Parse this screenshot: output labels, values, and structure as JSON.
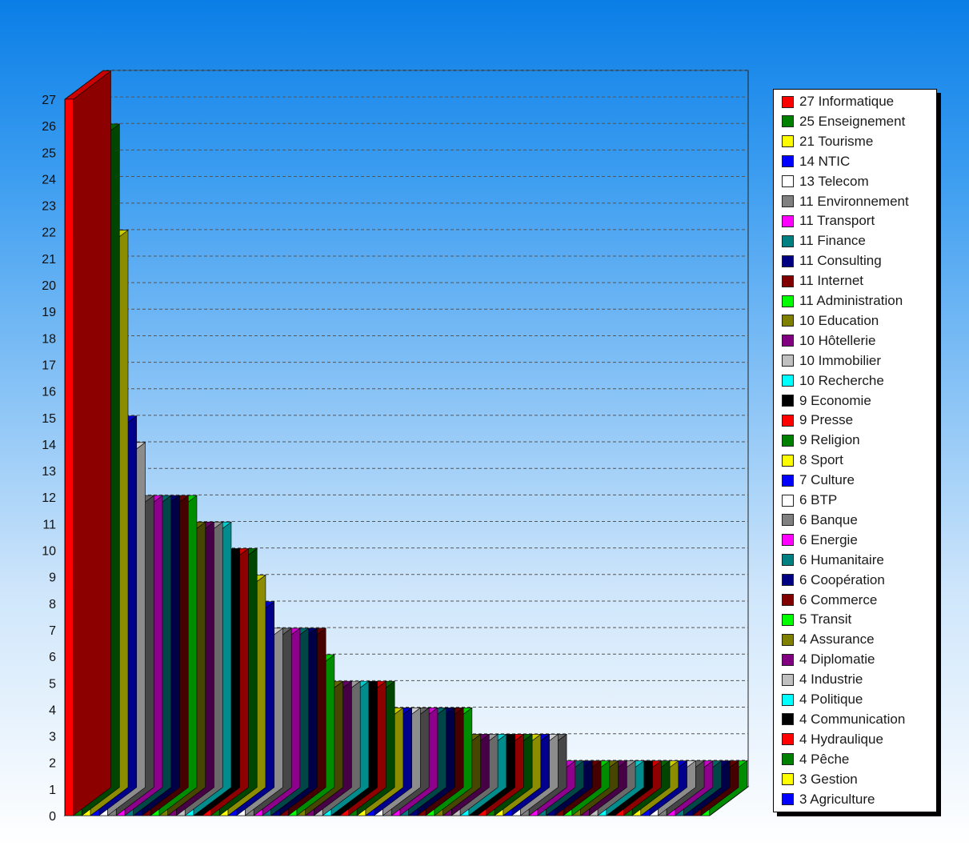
{
  "chart_data": {
    "type": "bar",
    "ylim": [
      0,
      27
    ],
    "yticks": [
      0,
      1,
      2,
      3,
      4,
      5,
      6,
      7,
      8,
      9,
      10,
      11,
      12,
      13,
      14,
      15,
      16,
      17,
      18,
      19,
      20,
      21,
      22,
      23,
      24,
      25,
      26,
      27
    ],
    "grid": true,
    "legend_position": "right",
    "bars": [
      {
        "value": 27,
        "color": "#ff0000"
      },
      {
        "value": 25,
        "color": "#008000"
      },
      {
        "value": 21,
        "color": "#ffff00"
      },
      {
        "value": 14,
        "color": "#0000ff"
      },
      {
        "value": 13,
        "color": "#ffffff"
      },
      {
        "value": 11,
        "color": "#808080"
      },
      {
        "value": 11,
        "color": "#ff00ff"
      },
      {
        "value": 11,
        "color": "#008080"
      },
      {
        "value": 11,
        "color": "#000080"
      },
      {
        "value": 11,
        "color": "#800000"
      },
      {
        "value": 11,
        "color": "#00ff00"
      },
      {
        "value": 10,
        "color": "#808000"
      },
      {
        "value": 10,
        "color": "#800080"
      },
      {
        "value": 10,
        "color": "#c0c0c0"
      },
      {
        "value": 10,
        "color": "#00ffff"
      },
      {
        "value": 9,
        "color": "#000000"
      },
      {
        "value": 9,
        "color": "#ff0000"
      },
      {
        "value": 9,
        "color": "#008000"
      },
      {
        "value": 8,
        "color": "#ffff00"
      },
      {
        "value": 7,
        "color": "#0000ff"
      },
      {
        "value": 6,
        "color": "#ffffff"
      },
      {
        "value": 6,
        "color": "#808080"
      },
      {
        "value": 6,
        "color": "#ff00ff"
      },
      {
        "value": 6,
        "color": "#008080"
      },
      {
        "value": 6,
        "color": "#000080"
      },
      {
        "value": 6,
        "color": "#800000"
      },
      {
        "value": 5,
        "color": "#00ff00"
      },
      {
        "value": 4,
        "color": "#808000"
      },
      {
        "value": 4,
        "color": "#800080"
      },
      {
        "value": 4,
        "color": "#c0c0c0"
      },
      {
        "value": 4,
        "color": "#00ffff"
      },
      {
        "value": 4,
        "color": "#000000"
      },
      {
        "value": 4,
        "color": "#ff0000"
      },
      {
        "value": 4,
        "color": "#008000"
      },
      {
        "value": 3,
        "color": "#ffff00"
      },
      {
        "value": 3,
        "color": "#0000ff"
      },
      {
        "value": 3,
        "color": "#ffffff"
      },
      {
        "value": 3,
        "color": "#808080"
      },
      {
        "value": 3,
        "color": "#ff00ff"
      },
      {
        "value": 3,
        "color": "#008080"
      },
      {
        "value": 3,
        "color": "#000080"
      },
      {
        "value": 3,
        "color": "#800000"
      },
      {
        "value": 3,
        "color": "#00ff00"
      },
      {
        "value": 2,
        "color": "#808000"
      },
      {
        "value": 2,
        "color": "#800080"
      },
      {
        "value": 2,
        "color": "#c0c0c0"
      },
      {
        "value": 2,
        "color": "#00ffff"
      },
      {
        "value": 2,
        "color": "#000000"
      },
      {
        "value": 2,
        "color": "#ff0000"
      },
      {
        "value": 2,
        "color": "#008000"
      },
      {
        "value": 2,
        "color": "#ffff00"
      },
      {
        "value": 2,
        "color": "#0000ff"
      },
      {
        "value": 2,
        "color": "#ffffff"
      },
      {
        "value": 2,
        "color": "#808080"
      },
      {
        "value": 1,
        "color": "#ff00ff"
      },
      {
        "value": 1,
        "color": "#008080"
      },
      {
        "value": 1,
        "color": "#000080"
      },
      {
        "value": 1,
        "color": "#800000"
      },
      {
        "value": 1,
        "color": "#00ff00"
      },
      {
        "value": 1,
        "color": "#808000"
      },
      {
        "value": 1,
        "color": "#800080"
      },
      {
        "value": 1,
        "color": "#c0c0c0"
      },
      {
        "value": 1,
        "color": "#00ffff"
      },
      {
        "value": 1,
        "color": "#000000"
      },
      {
        "value": 1,
        "color": "#ff0000"
      },
      {
        "value": 1,
        "color": "#008000"
      },
      {
        "value": 1,
        "color": "#ffff00"
      },
      {
        "value": 1,
        "color": "#0000ff"
      },
      {
        "value": 1,
        "color": "#ffffff"
      },
      {
        "value": 1,
        "color": "#808080"
      },
      {
        "value": 1,
        "color": "#ff00ff"
      },
      {
        "value": 1,
        "color": "#008080"
      },
      {
        "value": 1,
        "color": "#000080"
      },
      {
        "value": 1,
        "color": "#800000"
      },
      {
        "value": 1,
        "color": "#00ff00"
      }
    ],
    "legend": [
      {
        "label": "27 Informatique",
        "color": "#ff0000"
      },
      {
        "label": "25 Enseignement",
        "color": "#008000"
      },
      {
        "label": "21 Tourisme",
        "color": "#ffff00"
      },
      {
        "label": "14 NTIC",
        "color": "#0000ff"
      },
      {
        "label": "13 Telecom",
        "color": "#ffffff"
      },
      {
        "label": "11 Environnement",
        "color": "#808080"
      },
      {
        "label": "11 Transport",
        "color": "#ff00ff"
      },
      {
        "label": "11 Finance",
        "color": "#008080"
      },
      {
        "label": "11 Consulting",
        "color": "#000080"
      },
      {
        "label": "11 Internet",
        "color": "#800000"
      },
      {
        "label": "11 Administration",
        "color": "#00ff00"
      },
      {
        "label": "10 Education",
        "color": "#808000"
      },
      {
        "label": "10 Hôtellerie",
        "color": "#800080"
      },
      {
        "label": "10 Immobilier",
        "color": "#c0c0c0"
      },
      {
        "label": "10 Recherche",
        "color": "#00ffff"
      },
      {
        "label": "9 Economie",
        "color": "#000000"
      },
      {
        "label": "9 Presse",
        "color": "#ff0000"
      },
      {
        "label": "9 Religion",
        "color": "#008000"
      },
      {
        "label": "8 Sport",
        "color": "#ffff00"
      },
      {
        "label": "7 Culture",
        "color": "#0000ff"
      },
      {
        "label": "6 BTP",
        "color": "#ffffff"
      },
      {
        "label": "6 Banque",
        "color": "#808080"
      },
      {
        "label": "6 Energie",
        "color": "#ff00ff"
      },
      {
        "label": "6 Humanitaire",
        "color": "#008080"
      },
      {
        "label": "6 Coopération",
        "color": "#000080"
      },
      {
        "label": "6 Commerce",
        "color": "#800000"
      },
      {
        "label": "5 Transit",
        "color": "#00ff00"
      },
      {
        "label": "4 Assurance",
        "color": "#808000"
      },
      {
        "label": "4 Diplomatie",
        "color": "#800080"
      },
      {
        "label": "4 Industrie",
        "color": "#c0c0c0"
      },
      {
        "label": "4 Politique",
        "color": "#00ffff"
      },
      {
        "label": "4 Communication",
        "color": "#000000"
      },
      {
        "label": "4 Hydraulique",
        "color": "#ff0000"
      },
      {
        "label": "4 Pêche",
        "color": "#008000"
      },
      {
        "label": "3 Gestion",
        "color": "#ffff00"
      },
      {
        "label": "3 Agriculture",
        "color": "#0000ff"
      }
    ]
  }
}
